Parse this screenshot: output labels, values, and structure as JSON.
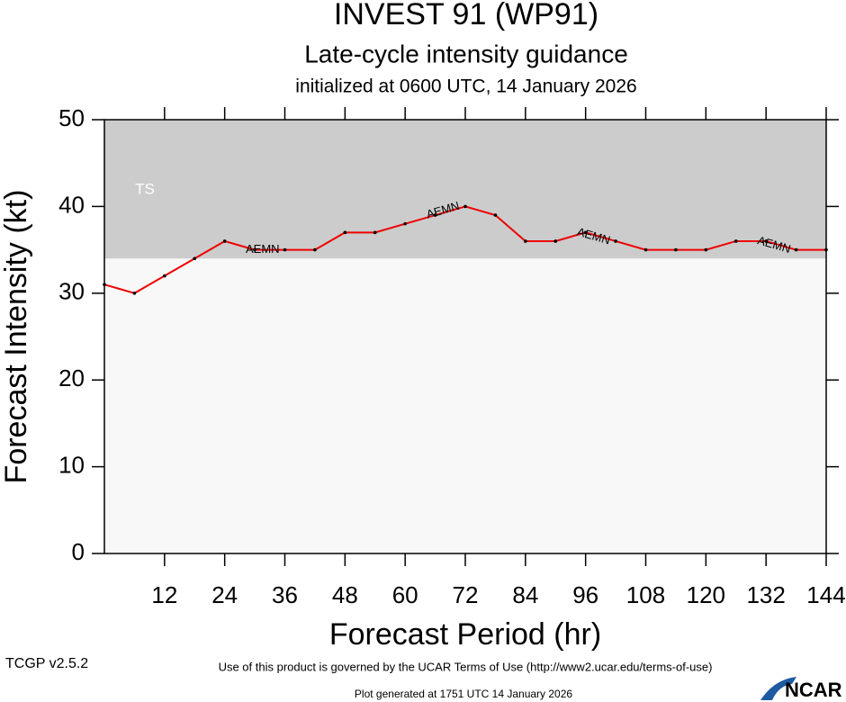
{
  "chart_data": {
    "type": "line",
    "title": "INVEST 91 (WP91)",
    "subtitle": "Late-cycle intensity guidance",
    "initialized": "initialized at 0600 UTC, 14 January 2026",
    "xlabel": "Forecast Period (hr)",
    "ylabel": "Forecast Intensity (kt)",
    "x": [
      0,
      6,
      12,
      18,
      24,
      30,
      36,
      42,
      48,
      54,
      60,
      66,
      72,
      78,
      84,
      90,
      96,
      102,
      108,
      114,
      120,
      126,
      132,
      138,
      144
    ],
    "series": [
      {
        "name": "AEMN",
        "color": "#ee0000",
        "values": [
          31,
          30,
          32,
          34,
          36,
          35,
          35,
          35,
          37,
          37,
          38,
          39,
          40,
          39,
          36,
          36,
          37,
          36,
          35,
          35,
          35,
          36,
          36,
          35,
          35
        ]
      }
    ],
    "xlim": [
      0,
      144
    ],
    "xticks": [
      12,
      24,
      36,
      48,
      60,
      72,
      84,
      96,
      108,
      120,
      132,
      144
    ],
    "ylim": [
      0,
      50
    ],
    "yticks": [
      0,
      10,
      20,
      30,
      40,
      50
    ],
    "bands": [
      {
        "label": "TS",
        "range": [
          34,
          50
        ],
        "color": "#cccccc"
      }
    ],
    "background": "#f8f8f8",
    "footer": {
      "terms": "Use of this product is governed by the UCAR Terms of Use (http://www2.ucar.edu/terms-of-use)",
      "version": "TCGP v2.5.2",
      "generated": "Plot generated at 1751 UTC   14 January 2026",
      "logo": "NCAR"
    }
  }
}
